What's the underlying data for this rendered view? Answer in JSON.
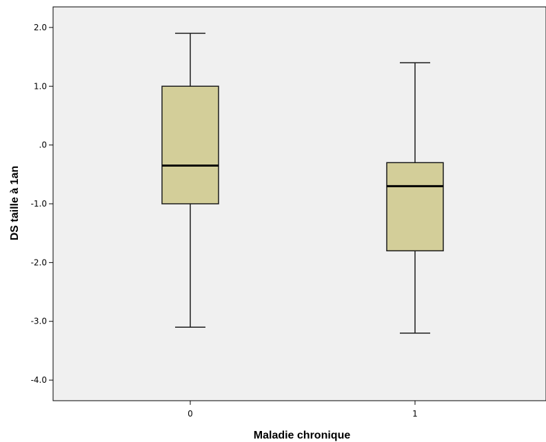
{
  "chart_data": {
    "type": "box",
    "title": "",
    "xlabel": "Maladie chronique",
    "ylabel": "DS taille à 1an",
    "categories": [
      "0",
      "1"
    ],
    "boxes": [
      {
        "category": "0",
        "whisker_low": -3.1,
        "q1": -1.0,
        "median": -0.35,
        "q3": 1.0,
        "whisker_high": 1.9
      },
      {
        "category": "1",
        "whisker_low": -3.2,
        "q1": -1.8,
        "median": -0.7,
        "q3": -0.3,
        "whisker_high": 1.4
      }
    ],
    "ylim": [
      -4.35,
      2.35
    ],
    "y_ticks": [
      2.0,
      1.0,
      0.0,
      -1.0,
      -2.0,
      -3.0,
      -4.0
    ],
    "y_tick_labels": [
      "2.0",
      "1.0",
      ".0",
      "-1.0",
      "-2.0",
      "-3.0",
      "-4.0"
    ],
    "grid": false,
    "colors": {
      "plot_background": "#f0f0f0",
      "box_fill": "#d3ce99",
      "box_stroke": "#1a1a1a",
      "median_line": "#000000",
      "axis": "#000000"
    }
  }
}
